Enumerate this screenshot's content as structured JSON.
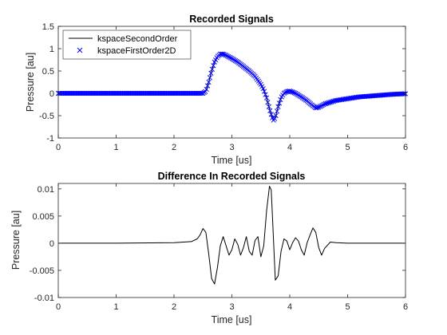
{
  "chart_data": [
    {
      "type": "line",
      "title": "Recorded Signals",
      "xlabel": "Time [us]",
      "ylabel": "Pressure [au]",
      "xlim": [
        0,
        6
      ],
      "ylim": [
        -1,
        1.5
      ],
      "xticks": [
        0,
        1,
        2,
        3,
        4,
        5,
        6
      ],
      "xtick_labels": [
        "0",
        "1",
        "2",
        "3",
        "4",
        "5",
        "6"
      ],
      "yticks": [
        -1,
        -0.5,
        0,
        0.5,
        1,
        1.5
      ],
      "ytick_labels": [
        "-1",
        "-0.5",
        "0",
        "0.5",
        "1",
        "1.5"
      ],
      "grid": false,
      "legend_position": "top-left",
      "series": [
        {
          "name": "kspaceSecondOrder",
          "style": "line",
          "color": "#000000",
          "x": [
            0,
            2.5,
            2.55,
            2.6,
            2.65,
            2.7,
            2.75,
            2.8,
            2.85,
            2.9,
            3.0,
            3.1,
            3.2,
            3.3,
            3.4,
            3.5,
            3.55,
            3.6,
            3.65,
            3.7,
            3.72,
            3.75,
            3.8,
            3.85,
            3.9,
            3.95,
            4.0,
            4.05,
            4.1,
            4.2,
            4.3,
            4.4,
            4.45,
            4.5,
            4.55,
            4.6,
            4.7,
            4.8,
            5.0,
            5.2,
            5.4,
            5.6,
            5.8,
            6.0
          ],
          "y": [
            0,
            0,
            0.05,
            0.25,
            0.5,
            0.7,
            0.82,
            0.88,
            0.88,
            0.85,
            0.78,
            0.7,
            0.6,
            0.5,
            0.38,
            0.2,
            0.08,
            -0.1,
            -0.35,
            -0.55,
            -0.6,
            -0.55,
            -0.3,
            -0.1,
            0.0,
            0.04,
            0.05,
            0.03,
            0.0,
            -0.08,
            -0.17,
            -0.28,
            -0.33,
            -0.31,
            -0.28,
            -0.24,
            -0.2,
            -0.16,
            -0.12,
            -0.08,
            -0.06,
            -0.04,
            -0.02,
            -0.01
          ]
        },
        {
          "name": "kspaceFirstOrder2D",
          "style": "markers-x",
          "color": "#0000ff",
          "x": [
            0,
            2.5,
            2.55,
            2.6,
            2.65,
            2.7,
            2.75,
            2.8,
            2.85,
            2.9,
            3.0,
            3.1,
            3.2,
            3.3,
            3.4,
            3.5,
            3.55,
            3.6,
            3.65,
            3.7,
            3.72,
            3.75,
            3.8,
            3.85,
            3.9,
            3.95,
            4.0,
            4.05,
            4.1,
            4.2,
            4.3,
            4.4,
            4.45,
            4.5,
            4.55,
            4.6,
            4.7,
            4.8,
            5.0,
            5.2,
            5.4,
            5.6,
            5.8,
            6.0
          ],
          "y": [
            0,
            0,
            0.05,
            0.25,
            0.5,
            0.7,
            0.82,
            0.88,
            0.88,
            0.85,
            0.78,
            0.7,
            0.6,
            0.5,
            0.38,
            0.2,
            0.08,
            -0.1,
            -0.35,
            -0.55,
            -0.6,
            -0.55,
            -0.3,
            -0.1,
            0.0,
            0.04,
            0.05,
            0.03,
            0.0,
            -0.08,
            -0.17,
            -0.28,
            -0.33,
            -0.31,
            -0.28,
            -0.24,
            -0.2,
            -0.16,
            -0.12,
            -0.08,
            -0.06,
            -0.04,
            -0.02,
            -0.01
          ]
        }
      ]
    },
    {
      "type": "line",
      "title": "Difference In Recorded Signals",
      "xlabel": "Time [us]",
      "ylabel": "Pressure [au]",
      "xlim": [
        0,
        6
      ],
      "ylim": [
        -0.01,
        0.011
      ],
      "xticks": [
        0,
        1,
        2,
        3,
        4,
        5,
        6
      ],
      "xtick_labels": [
        "0",
        "1",
        "2",
        "3",
        "4",
        "5",
        "6"
      ],
      "yticks": [
        -0.01,
        -0.005,
        0,
        0.005,
        0.01
      ],
      "ytick_labels": [
        "-0.01",
        "-0.005",
        "0",
        "0.005",
        "0.01"
      ],
      "grid": false,
      "series": [
        {
          "style": "line",
          "color": "#000000",
          "x": [
            0,
            1.0,
            2.0,
            2.3,
            2.4,
            2.45,
            2.5,
            2.55,
            2.6,
            2.65,
            2.7,
            2.75,
            2.8,
            2.85,
            2.9,
            2.95,
            3.0,
            3.05,
            3.1,
            3.15,
            3.2,
            3.25,
            3.3,
            3.35,
            3.4,
            3.45,
            3.5,
            3.55,
            3.6,
            3.65,
            3.68,
            3.7,
            3.75,
            3.8,
            3.85,
            3.9,
            3.95,
            4.0,
            4.05,
            4.1,
            4.15,
            4.2,
            4.25,
            4.3,
            4.35,
            4.4,
            4.45,
            4.5,
            4.55,
            4.6,
            4.7,
            4.8,
            5.0,
            5.5,
            6.0
          ],
          "y": [
            0,
            0,
            0.0001,
            0.0003,
            0.0008,
            0.0015,
            0.0027,
            0.002,
            -0.002,
            -0.0065,
            -0.0075,
            -0.0045,
            -0.0005,
            0.0012,
            -0.0005,
            -0.0022,
            -0.0012,
            0.0008,
            -0.0002,
            -0.0022,
            -0.0008,
            0.0012,
            -0.0015,
            -0.0022,
            0.0005,
            0.0012,
            -0.0025,
            -0.0005,
            0.006,
            0.0105,
            0.0098,
            0.005,
            -0.0068,
            -0.006,
            -0.0015,
            0.0008,
            0.0004,
            -0.0012,
            0.0001,
            0.001,
            0.0004,
            -0.0012,
            -0.0022,
            0.0001,
            0.0015,
            0.0028,
            0.002,
            -0.0008,
            -0.0022,
            -0.001,
            0.0002,
            0.0001,
            0,
            0,
            0
          ]
        }
      ]
    }
  ]
}
